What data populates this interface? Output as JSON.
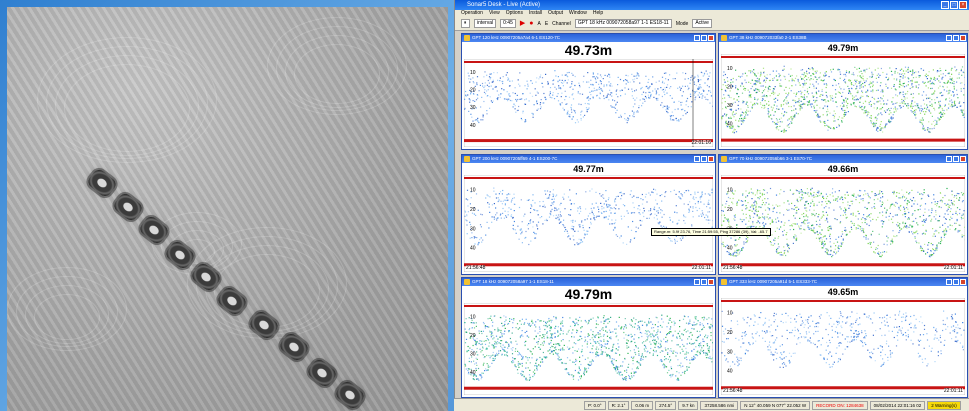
{
  "app": {
    "title": "Sonar5 Desk - Live (Active)",
    "menu": [
      "Operation",
      "View",
      "Options",
      "Install",
      "Output",
      "Window",
      "Help"
    ],
    "toolbar": {
      "interval_value": "interval",
      "time_value": "0:45",
      "channel_label": "Channel",
      "channel_value": "GPT 18 kHz 009072058a97 1-1 ES18-11",
      "mode_label": "Mode",
      "mode_value": "Active",
      "btn_a": "A",
      "btn_e": "E"
    }
  },
  "panels": [
    {
      "title": "GPT 120 kHz 00907205a7a4 6-1 ES120-7C",
      "depth": "49.73m",
      "depth_size": 14,
      "time_start": "",
      "time_end": "22:01:16",
      "density": 0.45,
      "scheme": "blue"
    },
    {
      "title": "GPT 38 kHz 009072033fa0 2-1 ES38B",
      "depth": "49.79m",
      "depth_size": 9,
      "time_start": "",
      "time_end": "",
      "density": 0.9,
      "scheme": "green"
    },
    {
      "title": "GPT 200 kHz 00907205ff69 4-1 ES200-7C",
      "depth": "49.77m",
      "depth_size": 9,
      "time_start": "21:56:48",
      "time_end": "22:01:11",
      "density": 0.4,
      "scheme": "blue"
    },
    {
      "title": "GPT 70 kHz 009072056b66 3-1 ES70-7C",
      "depth": "49.66m",
      "depth_size": 9,
      "time_start": "21:56:48",
      "time_end": "22:01:11",
      "density": 0.75,
      "scheme": "green"
    },
    {
      "title": "GPT 18 kHz 009072058a97 1-1 ES18-11",
      "depth": "49.79m",
      "depth_size": 14,
      "time_start": "",
      "time_end": "",
      "density": 0.85,
      "scheme": "teal"
    },
    {
      "title": "GPT 333 kHz 00907205a91d 5-1 ES333-7C",
      "depth": "49.65m",
      "depth_size": 9,
      "time_start": "21:56:48",
      "time_end": "22:01:11",
      "density": 0.35,
      "scheme": "blue"
    }
  ],
  "axis_ticks": [
    "10",
    "20",
    "30",
    "40"
  ],
  "tooltip": "Range.m: 5.9f 23.76, Time 21:59:55, Ping 37286 (39), Val: -65.7",
  "status": {
    "items": [
      "P: 0.0°",
      "R: 2.1°",
      "0.06 m",
      "274.5°",
      "9.7 kn",
      "37258.586 nmi",
      "N 12° 40.059 N  077° 22.052 W",
      "RECORD ON: 1284638",
      "08/02/2014 22:01:16 02"
    ],
    "warning": "2 Warning(s)"
  },
  "colors": {
    "blue": "#3a7fe0",
    "green": "#1fae4a",
    "teal": "#2bb59a",
    "bottom_red": "#c81414"
  }
}
